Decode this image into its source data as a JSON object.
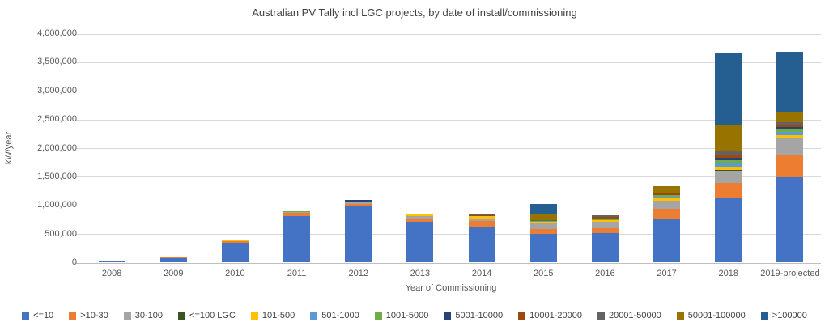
{
  "chart_data": {
    "type": "bar",
    "stacked": true,
    "title": "Australian PV Tally incl LGC projects, by date of install/commissioning",
    "xlabel": "Year of Commissioning",
    "ylabel": "kW/year",
    "categories": [
      "2008",
      "2009",
      "2010",
      "2011",
      "2012",
      "2013",
      "2014",
      "2015",
      "2016",
      "2017",
      "2018",
      "2019-projected"
    ],
    "series": [
      {
        "name": "<=10",
        "color": "#4472C4",
        "values": [
          22000,
          70000,
          340000,
          810000,
          970000,
          700000,
          620000,
          490000,
          515000,
          750000,
          1110000,
          1480000
        ]
      },
      {
        "name": ">10-30",
        "color": "#ED7D31",
        "values": [
          2000,
          10000,
          25000,
          55000,
          55000,
          60000,
          95000,
          95000,
          85000,
          185000,
          280000,
          380000
        ]
      },
      {
        "name": "30-100",
        "color": "#A5A5A5",
        "values": [
          1000,
          2000,
          5000,
          10000,
          40000,
          50000,
          45000,
          95000,
          105000,
          140000,
          210000,
          300000
        ]
      },
      {
        "name": "<=100 LGC",
        "color": "#375623",
        "values": [
          0,
          0,
          0,
          0,
          0,
          0,
          0,
          0,
          0,
          5000,
          10000,
          10000
        ]
      },
      {
        "name": "101-500",
        "color": "#FFC000",
        "values": [
          0,
          3000,
          15000,
          5000,
          0,
          20000,
          45000,
          25000,
          30000,
          35000,
          60000,
          55000
        ]
      },
      {
        "name": "501-1000",
        "color": "#5B9BD5",
        "values": [
          0,
          0,
          0,
          0,
          0,
          5000,
          0,
          5000,
          5000,
          10000,
          55000,
          45000
        ]
      },
      {
        "name": "1001-5000",
        "color": "#70AD47",
        "values": [
          0,
          0,
          0,
          15000,
          0,
          0,
          5000,
          5000,
          5000,
          45000,
          60000,
          55000
        ]
      },
      {
        "name": "5001-10000",
        "color": "#264478",
        "values": [
          0,
          0,
          0,
          0,
          20000,
          0,
          0,
          5000,
          5000,
          5000,
          45000,
          30000
        ]
      },
      {
        "name": "10001-20000",
        "color": "#9E480E",
        "values": [
          0,
          0,
          0,
          0,
          0,
          0,
          10000,
          5000,
          40000,
          30000,
          55000,
          50000
        ]
      },
      {
        "name": "20001-50000",
        "color": "#636363",
        "values": [
          0,
          0,
          0,
          0,
          0,
          0,
          10000,
          5000,
          30000,
          10000,
          55000,
          45000
        ]
      },
      {
        "name": "50001-100000",
        "color": "#997300",
        "values": [
          0,
          0,
          0,
          0,
          0,
          5000,
          10000,
          120000,
          0,
          110000,
          460000,
          160000
        ]
      },
      {
        "name": ">100000",
        "color": "#255E91",
        "values": [
          0,
          0,
          0,
          0,
          0,
          0,
          0,
          170000,
          0,
          0,
          1250000,
          1060000
        ]
      }
    ],
    "ylim": [
      0,
      4000000
    ],
    "ytick_step": 500000,
    "grid": true,
    "legend_position": "bottom"
  },
  "colors": {
    "background": "#FFFFFF",
    "gridline": "#D9D9D9",
    "baseline": "#BFBFBF",
    "tick_text": "#595959",
    "title_text": "#404040",
    "legend_text": "#404040"
  }
}
